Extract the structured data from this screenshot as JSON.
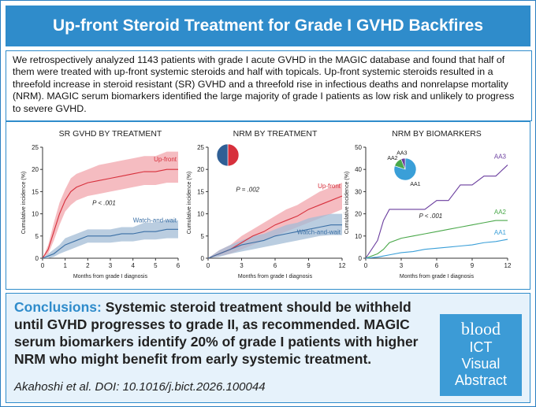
{
  "header": {
    "title": "Up-front Steroid Treatment for Grade I GVHD Backfires"
  },
  "summary": "We retrospectively analyzed 1143 patients with grade I acute GVHD in the MAGIC database and found that half of them were treated with up-front systemic steroids and half with topicals. Up-front systemic steroids resulted in a threefold increase in steroid resistant (SR) GVHD and a threefold rise in infectious deaths and nonrelapse mortality (NRM). MAGIC serum biomarkers identified the large majority of grade I patients as low risk and unlikely to progress to severe GVHD.",
  "chart_data": [
    {
      "type": "line",
      "title": "SR GVHD BY TREATMENT",
      "x_label": "Months from grade I diagnosis",
      "y_label": "Cumulative incidence (%)",
      "annotation": "P < .001",
      "xlim": [
        0,
        6
      ],
      "xticks": [
        0,
        1,
        2,
        3,
        4,
        5,
        6
      ],
      "ylim": [
        0,
        25
      ],
      "yticks": [
        0,
        5,
        10,
        15,
        20,
        25
      ],
      "x": [
        0,
        0.25,
        0.5,
        0.75,
        1,
        1.25,
        1.5,
        2,
        2.5,
        3,
        3.5,
        4,
        4.5,
        5,
        5.5,
        6
      ],
      "series": [
        {
          "name": "Up-front",
          "color": "#d7303c",
          "band_color": "#f1a5ac",
          "values": [
            0,
            2,
            6,
            10,
            13,
            15,
            16,
            17,
            17.5,
            18,
            18.5,
            19,
            19.5,
            19.5,
            20,
            20
          ],
          "lower": [
            0,
            1,
            4,
            7.5,
            10.5,
            12,
            13,
            14,
            14.5,
            15,
            15.5,
            16,
            16.5,
            16.5,
            17,
            17
          ],
          "upper": [
            0,
            3,
            8,
            12.5,
            15.5,
            18,
            19,
            20,
            21,
            21.5,
            22,
            22.5,
            23,
            23,
            24,
            24
          ]
        },
        {
          "name": "Watch-and-wait",
          "color": "#3a6fa5",
          "band_color": "#a3bcd6",
          "values": [
            0,
            0.5,
            1,
            2,
            3,
            3.5,
            4,
            5,
            5,
            5,
            5.5,
            5.5,
            6,
            6,
            6.5,
            6.5
          ],
          "lower": [
            0,
            0,
            0.3,
            1,
            1.5,
            2,
            2.5,
            3.5,
            3.5,
            3.5,
            3.8,
            3.8,
            4.2,
            4.2,
            4.5,
            4.5
          ],
          "upper": [
            0,
            1,
            2,
            3,
            4.5,
            5,
            5.5,
            6.5,
            6.5,
            6.5,
            7,
            7,
            8,
            8,
            8.5,
            8.5
          ]
        }
      ]
    },
    {
      "type": "line",
      "title": "NRM BY TREATMENT",
      "x_label": "Months from grade I diagnosis",
      "y_label": "Cumulative incidence (%)",
      "annotation": "P = .002",
      "xlim": [
        0,
        12
      ],
      "xticks": [
        0,
        3,
        6,
        9,
        12
      ],
      "ylim": [
        0,
        25
      ],
      "yticks": [
        0,
        5,
        10,
        15,
        20,
        25
      ],
      "x": [
        0,
        1,
        2,
        3,
        4,
        5,
        6,
        7,
        8,
        9,
        10,
        11,
        12
      ],
      "series": [
        {
          "name": "Up-front",
          "color": "#d7303c",
          "band_color": "#f1a5ac",
          "values": [
            0,
            1,
            2,
            3.5,
            5,
            6,
            7.5,
            8.5,
            9.5,
            11,
            12,
            13,
            14
          ],
          "lower": [
            0,
            0.5,
            1,
            2,
            3,
            4,
            5,
            6,
            7,
            8,
            9,
            10,
            11
          ],
          "upper": [
            0,
            1.8,
            3,
            5,
            6.5,
            8,
            9.5,
            11,
            12,
            13.5,
            15,
            16,
            17
          ]
        },
        {
          "name": "Watch-and-wait",
          "color": "#3a6fa5",
          "band_color": "#a3bcd6",
          "values": [
            0,
            1,
            2,
            3,
            3.5,
            4,
            5,
            5.5,
            6,
            6.5,
            7,
            7.5,
            7.5
          ],
          "lower": [
            0,
            0.3,
            1,
            1.5,
            2,
            2.5,
            3,
            3.5,
            4,
            4.5,
            5,
            5.2,
            5.2
          ],
          "upper": [
            0,
            1.8,
            3,
            4,
            5,
            5.5,
            6.5,
            7.5,
            8,
            9,
            9.5,
            10,
            10
          ]
        }
      ],
      "inset_pie": {
        "values": [
          50,
          50
        ],
        "colors": [
          "#d7303c",
          "#2f5f95"
        ]
      }
    },
    {
      "type": "line",
      "title": "NRM BY BIOMARKERS",
      "x_label": "Months from grade I diagnosis",
      "y_label": "Cumulative incidence (%)",
      "annotation": "P < .001",
      "xlim": [
        0,
        12
      ],
      "xticks": [
        0,
        3,
        6,
        9,
        12
      ],
      "ylim": [
        0,
        50
      ],
      "yticks": [
        0,
        10,
        20,
        30,
        40,
        50
      ],
      "x": [
        0,
        1,
        1.5,
        2,
        3,
        4,
        5,
        6,
        7,
        8,
        9,
        10,
        11,
        12
      ],
      "series": [
        {
          "name": "AA3",
          "color": "#6a3d9e",
          "values": [
            0,
            8,
            17,
            22,
            22,
            22,
            22,
            26,
            26,
            33,
            33,
            37,
            37,
            42
          ]
        },
        {
          "name": "AA2",
          "color": "#4aa84a",
          "values": [
            0,
            2,
            4,
            7,
            9,
            10,
            11,
            12,
            13,
            14,
            15,
            16,
            17,
            17
          ]
        },
        {
          "name": "AA1",
          "color": "#3a9fd8",
          "values": [
            0,
            0.5,
            1,
            1.5,
            2.5,
            3,
            4,
            4.5,
            5,
            5.5,
            6,
            7,
            7.5,
            8.5
          ]
        }
      ],
      "inset_pie": {
        "values": [
          80,
          14,
          6
        ],
        "colors": [
          "#3a9fd8",
          "#4aa84a",
          "#6a3d9e"
        ],
        "labels": [
          "AA1",
          "AA2",
          "AA3"
        ]
      }
    }
  ],
  "conclusions": {
    "label": "Conclusions:",
    "text": "Systemic steroid treatment should be withheld until GVHD progresses to grade II, as recommended. MAGIC serum biomarkers  identify 20% of grade I patients with higher NRM who might benefit from early systemic treatment."
  },
  "citation": "Akahoshi et al. DOI: 10.1016/j.bict.2026.100044",
  "logo": {
    "brand": "blood",
    "lines": [
      "ICT",
      "Visual",
      "Abstract"
    ]
  }
}
